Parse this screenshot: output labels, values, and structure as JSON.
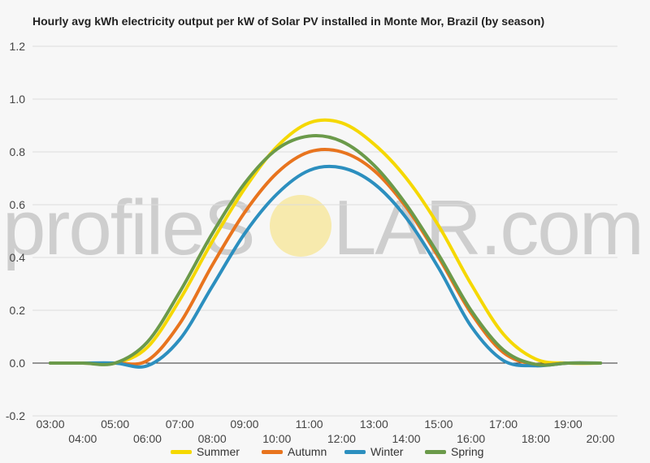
{
  "title": "Hourly avg kWh electricity output per kW of Solar PV installed in Monte Mor, Brazil (by season)",
  "watermark": {
    "left_text": "profileS",
    "right_text": "LAR.com",
    "sun_color": "#f7e7a0"
  },
  "chart_data": {
    "type": "line",
    "title": "Hourly avg kWh electricity output per kW of Solar PV installed in Monte Mor, Brazil (by season)",
    "xlabel": "",
    "ylabel": "",
    "ylim": [
      -0.2,
      1.2
    ],
    "yticks": [
      "1.2",
      "1.0",
      "0.8",
      "0.6",
      "0.4",
      "0.2",
      "0.0",
      "-0.2"
    ],
    "x": [
      "03:00",
      "04:00",
      "05:00",
      "06:00",
      "07:00",
      "08:00",
      "09:00",
      "10:00",
      "11:00",
      "12:00",
      "13:00",
      "14:00",
      "15:00",
      "16:00",
      "17:00",
      "18:00",
      "19:00",
      "20:00"
    ],
    "grid": true,
    "legend_position": "bottom",
    "series": [
      {
        "name": "Summer",
        "color": "#f5d800",
        "values": [
          0,
          0,
          0,
          0.06,
          0.24,
          0.46,
          0.66,
          0.82,
          0.91,
          0.91,
          0.83,
          0.7,
          0.52,
          0.3,
          0.11,
          0.015,
          0,
          0
        ]
      },
      {
        "name": "Autumn",
        "color": "#e8741e",
        "values": [
          0,
          0,
          0,
          0.01,
          0.15,
          0.37,
          0.57,
          0.72,
          0.8,
          0.8,
          0.73,
          0.59,
          0.4,
          0.19,
          0.04,
          -0.005,
          0,
          0
        ]
      },
      {
        "name": "Winter",
        "color": "#2c8fbf",
        "values": [
          0,
          0,
          0,
          -0.01,
          0.09,
          0.29,
          0.49,
          0.64,
          0.73,
          0.74,
          0.68,
          0.55,
          0.36,
          0.14,
          0.01,
          -0.01,
          0,
          0
        ]
      },
      {
        "name": "Spring",
        "color": "#6b9a4a",
        "values": [
          0,
          0,
          0,
          0.08,
          0.27,
          0.49,
          0.68,
          0.81,
          0.86,
          0.84,
          0.75,
          0.6,
          0.41,
          0.2,
          0.05,
          -0.005,
          0,
          0
        ]
      }
    ]
  }
}
